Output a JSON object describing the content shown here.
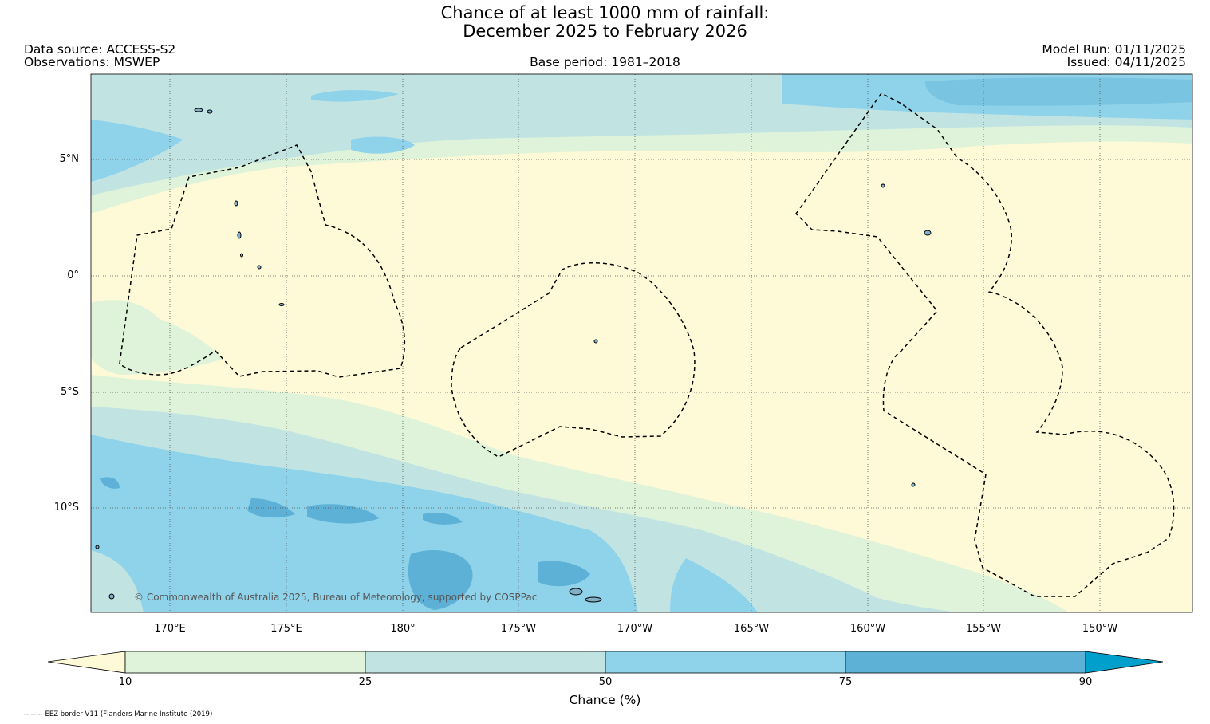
{
  "title": {
    "line1": "Chance of at least 1000 mm of rainfall:",
    "line2": "December 2025 to February 2026"
  },
  "info": {
    "data_source": "Data source: ACCESS-S2",
    "observations": "Observations: MSWEP",
    "base_period": "Base period: 1981–2018",
    "model_run": "Model Run: 01/11/2025",
    "issued": "Issued: 04/11/2025"
  },
  "axes": {
    "lat_labels": [
      "5°N",
      "0°",
      "5°S",
      "10°S"
    ],
    "lon_labels": [
      "170°E",
      "175°E",
      "180°",
      "175°W",
      "170°W",
      "165°W",
      "160°W",
      "155°W",
      "150°W"
    ]
  },
  "colorbar": {
    "ticks": [
      "10",
      "25",
      "50",
      "75",
      "90"
    ],
    "label": "Chance (%)",
    "colors": {
      "below_10": "#fef9d6",
      "10_25": "#dff3da",
      "25_50": "#c1e4e3",
      "50_75": "#8fd3ea",
      "75_90": "#5db1d6",
      "above_90": "#009fcc"
    }
  },
  "copyright": "© Commonwealth of Australia 2025, Bureau of Meteorology, supported by COSPPac",
  "footer": "-- -- -- EEZ border V11 (Flanders Marine Institute (2019)"
}
